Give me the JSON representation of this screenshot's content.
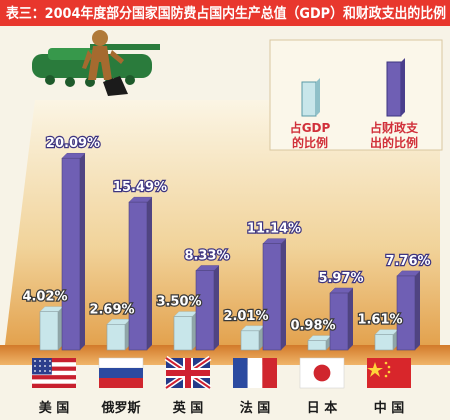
{
  "chart_data": {
    "type": "bar",
    "title": "表三：2004年度部分国家国防费占国内生产总值（GDP）和财政支出的比例",
    "categories": [
      "美 国",
      "俄罗斯",
      "英 国",
      "法 国",
      "日 本",
      "中 国"
    ],
    "series": [
      {
        "name": "占GDP的比例",
        "values": [
          4.02,
          2.69,
          3.5,
          2.01,
          0.98,
          1.61
        ],
        "labels": [
          "4.02%",
          "2.69%",
          "3.50%",
          "2.01%",
          "0.98%",
          "1.61%"
        ]
      },
      {
        "name": "占财政支出的比例",
        "values": [
          20.09,
          15.49,
          8.33,
          11.14,
          5.97,
          7.76
        ],
        "labels": [
          "20.09%",
          "15.49%",
          "8.33%",
          "11.14%",
          "5.97%",
          "7.76%"
        ]
      }
    ],
    "ylim": [
      0,
      22
    ],
    "legend_position": "top-right",
    "grid": false,
    "xlabel": "",
    "ylabel": ""
  },
  "legend": {
    "gdp_line1": "占GDP",
    "gdp_line2": "的比例",
    "fiscal_line1": "占财政支",
    "fiscal_line2": "出的比例"
  },
  "colors": {
    "title_band": "#e8372d",
    "gdp_bar": "#c8e6ea",
    "fiscal_bar": "#6f5fb4",
    "label_gdp": "#ffffff",
    "label_fiscal": "#ffffff",
    "legend_text": "#d1303a"
  },
  "flags": [
    "us-flag",
    "russia-flag",
    "uk-flag",
    "france-flag",
    "japan-flag",
    "china-flag"
  ]
}
